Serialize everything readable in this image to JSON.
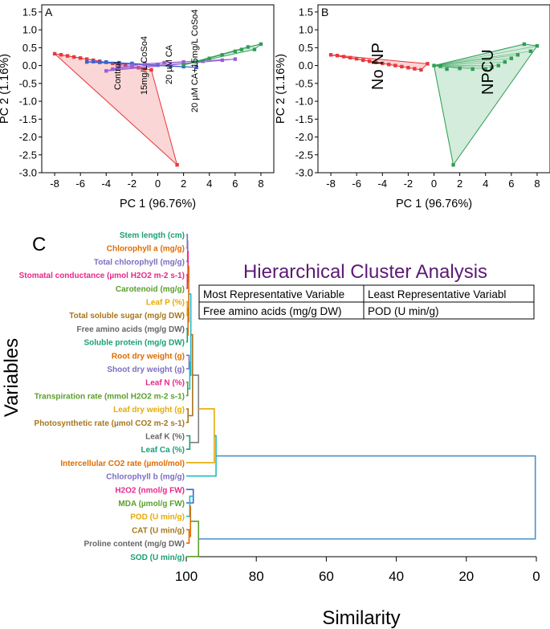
{
  "chart_data": [
    {
      "type": "scatter",
      "panel": "A",
      "xlabel": "PC 1 (96.76%)",
      "ylabel": "PC 2 (1.16%)",
      "xlim": [
        -9,
        9
      ],
      "ylim": [
        -3,
        1.7
      ],
      "xticks": [
        -8,
        -6,
        -4,
        -2,
        0,
        2,
        4,
        6,
        8
      ],
      "yticks": [
        1.5,
        1.0,
        0.5,
        0.0,
        -0.5,
        -1.0,
        -1.5,
        -2.0,
        -2.5,
        -3.0
      ],
      "tick_labels_x": [
        "-8",
        "-6",
        "-4",
        "-2",
        "0",
        "2",
        "4",
        "6",
        "8"
      ],
      "tick_labels_y": [
        "1.5",
        "1.0",
        "0.5",
        "0.0",
        "-0.5",
        "-1.0",
        "-1.5",
        "-2.0",
        "-2.5",
        "-3.0"
      ],
      "annotations": [
        "Control",
        "15mg/L CoSo4",
        "20 µM CA",
        "20 µM CA+15mg/L CoSo4"
      ],
      "series": [
        {
          "name": "Control",
          "color": "#e8383d",
          "fill": "rgba(240,120,120,0.30)",
          "points": [
            [
              -8.0,
              0.33
            ],
            [
              -7.5,
              0.3
            ],
            [
              -7.0,
              0.27
            ],
            [
              -6.5,
              0.24
            ],
            [
              -6.0,
              0.21
            ],
            [
              -5.5,
              0.18
            ],
            [
              -5.0,
              0.15
            ],
            [
              -4.5,
              0.12
            ],
            [
              -4.0,
              0.09
            ],
            [
              -3.5,
              0.06
            ],
            [
              -3.0,
              0.03
            ],
            [
              -2.5,
              0.0
            ],
            [
              -2.0,
              -0.03
            ],
            [
              -1.5,
              -0.06
            ],
            [
              -1.0,
              -0.09
            ],
            [
              -0.5,
              -0.12
            ],
            [
              1.5,
              -2.78
            ]
          ]
        },
        {
          "name": "15mg/L CoSo4",
          "color": "#3b63d1",
          "fill": "rgba(90,120,220,0.25)",
          "points": [
            [
              -5.5,
              0.1
            ],
            [
              -5.0,
              0.11
            ],
            [
              -4.5,
              0.09
            ],
            [
              -4.0,
              0.1
            ],
            [
              -3.0,
              0.08
            ],
            [
              -2.0,
              0.06
            ],
            [
              -1.0,
              0.04
            ],
            [
              0.0,
              0.01
            ],
            [
              1.0,
              -0.02
            ],
            [
              2.0,
              -0.03
            ],
            [
              3.0,
              -0.05
            ]
          ]
        },
        {
          "name": "20 µM CA",
          "color": "#9a5fd6",
          "fill": "rgba(170,110,220,0.25)",
          "points": [
            [
              -4.0,
              -0.15
            ],
            [
              -3.5,
              -0.1
            ],
            [
              -3.0,
              -0.05
            ],
            [
              -2.0,
              0.0
            ],
            [
              -1.0,
              0.05
            ],
            [
              0.5,
              0.08
            ],
            [
              2.0,
              0.1
            ],
            [
              3.5,
              0.12
            ],
            [
              5.0,
              0.15
            ],
            [
              6.0,
              0.18
            ]
          ]
        },
        {
          "name": "20 µM CA+15mg/L CoSo4",
          "color": "#2f9e55",
          "fill": "rgba(80,180,110,0.25)",
          "points": [
            [
              2.0,
              0.02
            ],
            [
              3.0,
              0.1
            ],
            [
              4.0,
              0.2
            ],
            [
              5.0,
              0.3
            ],
            [
              6.0,
              0.4
            ],
            [
              6.5,
              0.45
            ],
            [
              7.0,
              0.52
            ],
            [
              7.5,
              0.45
            ],
            [
              8.0,
              0.6
            ]
          ]
        }
      ]
    },
    {
      "type": "scatter",
      "panel": "B",
      "xlabel": "PC 1 (96.76%)",
      "ylabel": "PC 2 (1.16%)",
      "xlim": [
        -9,
        9
      ],
      "ylim": [
        -3,
        1.7
      ],
      "xticks": [
        -8,
        -6,
        -4,
        -2,
        0,
        2,
        4,
        6,
        8
      ],
      "yticks": [
        1.5,
        1.0,
        0.5,
        0.0,
        -0.5,
        -1.0,
        -1.5,
        -2.0,
        -2.5,
        -3.0
      ],
      "tick_labels_x": [
        "-8",
        "-6",
        "-4",
        "-2",
        "0",
        "2",
        "4",
        "6",
        "8"
      ],
      "tick_labels_y": [
        "1.5",
        "1.0",
        "0.5",
        "0.0",
        "-0.5",
        "-1.0",
        "-1.5",
        "-2.0",
        "-2.5",
        "-3.0"
      ],
      "annotations": [
        "No NP",
        "NPCU"
      ],
      "series": [
        {
          "name": "No NP",
          "color": "#e8383d",
          "fill": "rgba(240,120,120,0.30)",
          "points": [
            [
              -8.0,
              0.3
            ],
            [
              -7.5,
              0.28
            ],
            [
              -7.0,
              0.25
            ],
            [
              -6.5,
              0.22
            ],
            [
              -6.0,
              0.19
            ],
            [
              -5.5,
              0.15
            ],
            [
              -5.0,
              0.12
            ],
            [
              -4.5,
              0.09
            ],
            [
              -4.0,
              0.06
            ],
            [
              -3.5,
              0.03
            ],
            [
              -3.0,
              0.0
            ],
            [
              -2.5,
              -0.03
            ],
            [
              -2.0,
              -0.06
            ],
            [
              -1.5,
              -0.09
            ],
            [
              -1.0,
              -0.12
            ],
            [
              -0.5,
              0.05
            ]
          ]
        },
        {
          "name": "NPCU",
          "color": "#2f9e55",
          "fill": "rgba(80,180,110,0.25)",
          "points": [
            [
              0.0,
              0.0
            ],
            [
              0.5,
              -0.02
            ],
            [
              1.0,
              -0.1
            ],
            [
              1.5,
              -2.78
            ],
            [
              2.0,
              -0.08
            ],
            [
              3.0,
              -0.1
            ],
            [
              4.0,
              -0.1
            ],
            [
              4.5,
              -0.05
            ],
            [
              5.0,
              0.0
            ],
            [
              5.5,
              0.1
            ],
            [
              6.0,
              0.2
            ],
            [
              6.5,
              0.3
            ],
            [
              7.0,
              0.6
            ],
            [
              7.5,
              0.4
            ],
            [
              8.0,
              0.55
            ]
          ]
        }
      ]
    },
    {
      "type": "dendrogram",
      "panel": "C",
      "title": "Hierarchical Cluster Analysis",
      "xlabel": "Similarity",
      "ylabel": "Variables",
      "xlim": [
        100,
        0
      ],
      "xticks": [
        100,
        80,
        60,
        40,
        20,
        0
      ],
      "tick_labels_x": [
        "100",
        "80",
        "60",
        "40",
        "20",
        "0"
      ],
      "table": {
        "headers": [
          "Most Representative Variable",
          "Least Representative Variabl"
        ],
        "values": [
          "Free amino acids (mg/g DW)",
          "POD (U min/g)"
        ]
      },
      "leaves": [
        {
          "label": "Stem length (cm)",
          "color": "#1a9e77"
        },
        {
          "label": "Chlorophyll a (mg/g)",
          "color": "#e06c00"
        },
        {
          "label": "Total chlorophyll (mg/g)",
          "color": "#7d6ec2"
        },
        {
          "label": "Stomatal conductance (µmol H2O2 m-2 s-1)",
          "color": "#e7298a"
        },
        {
          "label": "Carotenoid (mg/g)",
          "color": "#5aa02c"
        },
        {
          "label": "Leaf P (%)",
          "color": "#e6ab02"
        },
        {
          "label": "Total soluble sugar (mg/g DW)",
          "color": "#a6761d"
        },
        {
          "label": "Free amino acids (mg/g DW)",
          "color": "#666666"
        },
        {
          "label": "Soluble protein (mg/g DW)",
          "color": "#1a9e77"
        },
        {
          "label": "Root dry weight (g)",
          "color": "#e06c00"
        },
        {
          "label": "Shoot dry weight (g)",
          "color": "#7d6ec2"
        },
        {
          "label": "Leaf N (%)",
          "color": "#e7298a"
        },
        {
          "label": "Transpiration rate (mmol H2O2 m-2 s-1)",
          "color": "#5aa02c"
        },
        {
          "label": "Leaf dry weight (g)",
          "color": "#e6ab02"
        },
        {
          "label": "Photosynthetic rate (µmol CO2 m-2 s-1)",
          "color": "#a6761d"
        },
        {
          "label": "Leaf K (%)",
          "color": "#666666"
        },
        {
          "label": "Leaf Ca (%)",
          "color": "#1a9e77"
        },
        {
          "label": "Intercellular CO2 rate (µmol/mol)",
          "color": "#e06c00"
        },
        {
          "label": "Chlorophyll b (mg/g)",
          "color": "#7d6ec2"
        },
        {
          "label": "H2O2 (nmol/g FW)",
          "color": "#e7298a"
        },
        {
          "label": "MDA (µmol/g FW)",
          "color": "#5aa02c"
        },
        {
          "label": "POD (U min/g)",
          "color": "#e6ab02"
        },
        {
          "label": "CAT (U min/g)",
          "color": "#a6761d"
        },
        {
          "label": "Proline content (mg/g DW)",
          "color": "#666666"
        },
        {
          "label": "SOD (U min/g)",
          "color": "#1a9e77"
        }
      ],
      "merges": [
        {
          "a": "L0",
          "b": "L1",
          "sim": 99.7,
          "color": "#7d6ec2"
        },
        {
          "a": "M0",
          "b": "L2",
          "sim": 99.6,
          "color": "#7d6ec2"
        },
        {
          "a": "L3",
          "b": "L4",
          "sim": 99.7,
          "color": "#e7298a"
        },
        {
          "a": "M1",
          "b": "M2",
          "sim": 99.5,
          "color": "#e7298a"
        },
        {
          "a": "L5",
          "b": "L6",
          "sim": 99.7,
          "color": "#e6ab02"
        },
        {
          "a": "L7",
          "b": "L8",
          "sim": 99.7,
          "color": "#1a9e77"
        },
        {
          "a": "M4",
          "b": "M5",
          "sim": 99.5,
          "color": "#e06c00"
        },
        {
          "a": "M3",
          "b": "M6",
          "sim": 99.3,
          "color": "#e06c00"
        },
        {
          "a": "L9",
          "b": "L10",
          "sim": 99.2,
          "color": "#7d6ec2"
        },
        {
          "a": "L11",
          "b": "L12",
          "sim": 99.6,
          "color": "#5aa02c"
        },
        {
          "a": "M8",
          "b": "M9",
          "sim": 99.0,
          "color": "#1fb8c9"
        },
        {
          "a": "M7",
          "b": "M10",
          "sim": 98.7,
          "color": "#1fb8c9"
        },
        {
          "a": "L13",
          "b": "L14",
          "sim": 99.5,
          "color": "#a6761d"
        },
        {
          "a": "M11",
          "b": "M12",
          "sim": 98.2,
          "color": "#a6761d"
        },
        {
          "a": "L15",
          "b": "L16",
          "sim": 99.0,
          "color": "#1a9e77"
        },
        {
          "a": "M13",
          "b": "M14",
          "sim": 96.5,
          "color": "#7f7f7f"
        },
        {
          "a": "M15",
          "b": "L17",
          "sim": 92.0,
          "color": "#e6ab02"
        },
        {
          "a": "M16",
          "b": "L18",
          "sim": 91.5,
          "color": "#1fb8c9"
        },
        {
          "a": "L19",
          "b": "L20",
          "sim": 98.0,
          "color": "#3b63d1"
        },
        {
          "a": "M18",
          "b": "L21",
          "sim": 99.0,
          "color": "#1fb8c9"
        },
        {
          "a": "L22",
          "b": "L23",
          "sim": 99.2,
          "color": "#e06c00"
        },
        {
          "a": "M19",
          "b": "M20",
          "sim": 98.8,
          "color": "#e06c00"
        },
        {
          "a": "M21",
          "b": "L24",
          "sim": 96.5,
          "color": "#5aa02c"
        },
        {
          "a": "M17",
          "b": "M22",
          "sim": 0.3,
          "color": "#4a90c8"
        }
      ]
    }
  ]
}
